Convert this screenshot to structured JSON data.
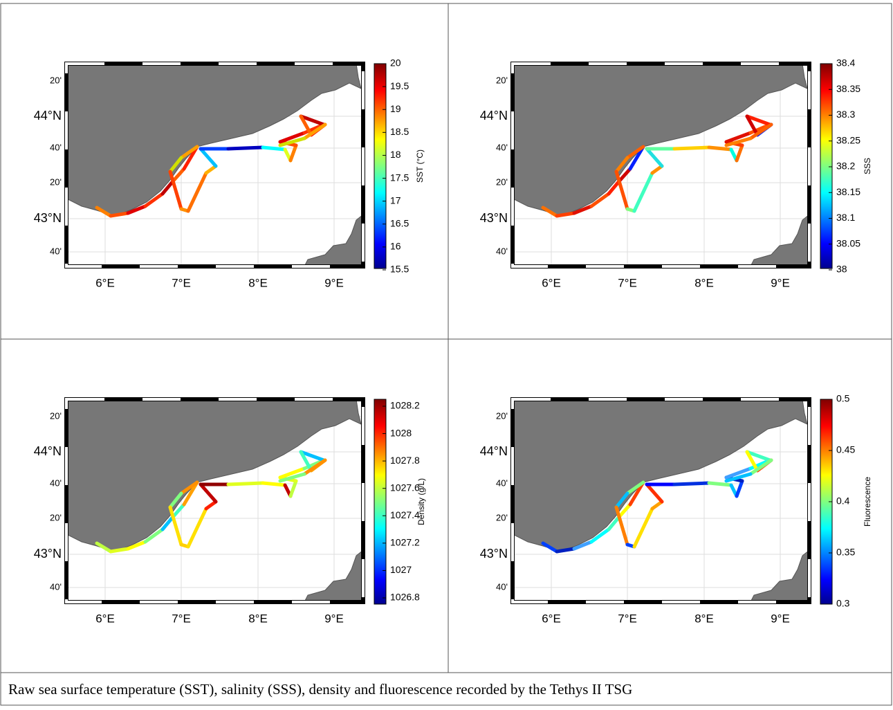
{
  "panels": [
    {
      "lon_ticks": [
        "6°E",
        "7°E",
        "8°E",
        "9°E"
      ],
      "lat_ticks": [
        "20'",
        "44°N",
        "40'",
        "20'",
        "43°N",
        "40'"
      ],
      "colorbar": {
        "ticks": [
          "20",
          "19.5",
          "19",
          "18.5",
          "18",
          "17.5",
          "17",
          "16.5",
          "16",
          "15.5"
        ],
        "label": "SST (°C)"
      }
    },
    {
      "lon_ticks": [
        "6°E",
        "7°E",
        "8°E",
        "9°E"
      ],
      "lat_ticks": [
        "20'",
        "44°N",
        "40'",
        "20'",
        "43°N",
        "40'"
      ],
      "colorbar": {
        "ticks": [
          "38.4",
          "38.35",
          "38.3",
          "38.25",
          "38.2",
          "38.15",
          "38.1",
          "38.05",
          "38"
        ],
        "label": "SSS"
      }
    },
    {
      "lon_ticks": [
        "6°E",
        "7°E",
        "8°E",
        "9°E"
      ],
      "lat_ticks": [
        "20'",
        "44°N",
        "40'",
        "20'",
        "43°N",
        "40'"
      ],
      "colorbar": {
        "ticks": [
          "1028.2",
          "1028",
          "1027.8",
          "1027.6",
          "1027.4",
          "1027.2",
          "1027",
          "1026.8"
        ],
        "label": "Density (g/L)"
      }
    },
    {
      "lon_ticks": [
        "6°E",
        "7°E",
        "8°E",
        "9°E"
      ],
      "lat_ticks": [
        "20'",
        "44°N",
        "40'",
        "20'",
        "43°N",
        "40'"
      ],
      "colorbar": {
        "ticks": [
          "0.5",
          "0.45",
          "0.4",
          "0.35",
          "0.3"
        ],
        "label": "Fluorescence"
      }
    }
  ],
  "caption": "Raw sea surface temperature (SST), salinity (SSS), density and fluorescence recorded by the Tethys II TSG"
}
